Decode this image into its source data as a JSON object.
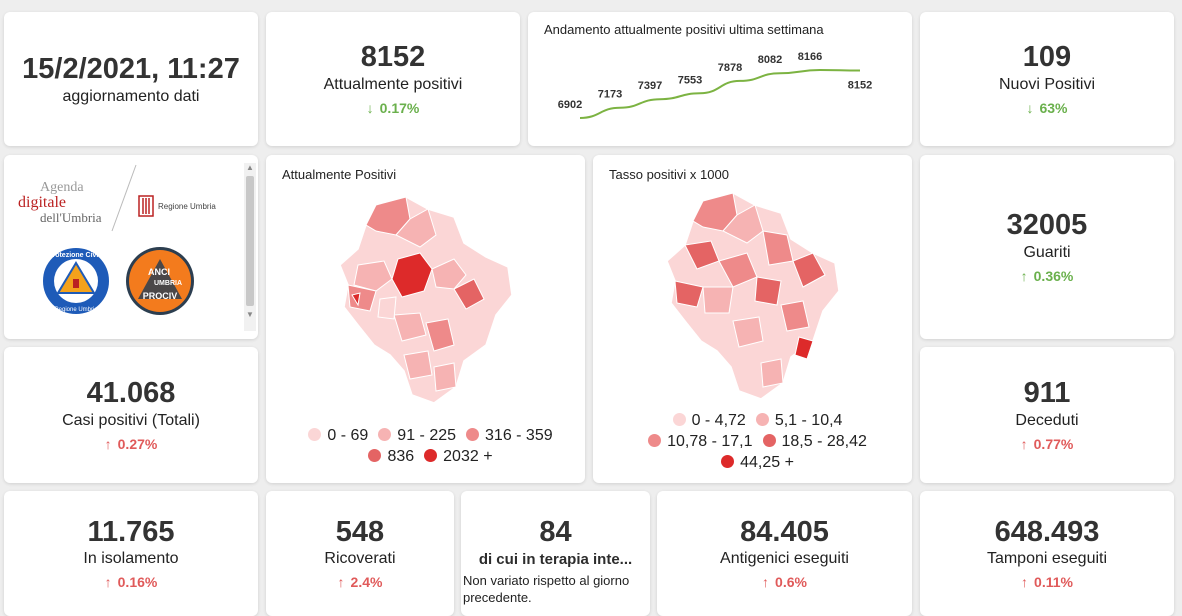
{
  "update": {
    "datetime": "15/2/2021, 11:27",
    "label": "aggiornamento dati"
  },
  "attualmente_positivi": {
    "value": "8152",
    "label": "Attualmente positivi",
    "delta": "0.17%",
    "direction": "down"
  },
  "weekly_chart": {
    "title": "Andamento attualmente positivi ultima settimana",
    "chart_data": {
      "type": "line",
      "title": "Andamento attualmente positivi ultima settimana",
      "values": [
        6902,
        7173,
        7397,
        7553,
        7878,
        8082,
        8166,
        8152
      ],
      "labels": [
        "6902",
        "7173",
        "7397",
        "7553",
        "7878",
        "8082",
        "8166",
        "8152"
      ],
      "color": "#7cb342"
    }
  },
  "nuovi_positivi": {
    "value": "109",
    "label": "Nuovi Positivi",
    "delta": "63%",
    "direction": "down"
  },
  "logos": {
    "agenda_line1": "Agenda",
    "agenda_line2": "digitale",
    "agenda_line3": "dell'Umbria",
    "regione": "Regione Umbria",
    "protezione_top": "Protezione Civile",
    "protezione_bottom": "Regione Umbria",
    "anci_line1": "ANCI",
    "anci_line2": "UMBRIA",
    "anci_line3": "PROCIV"
  },
  "map_positivi": {
    "title": "Attualmente Positivi",
    "legend": [
      {
        "label": "0 - 69",
        "color": "#fbd6d6"
      },
      {
        "label": "91 - 225",
        "color": "#f6b3b3"
      },
      {
        "label": "316 - 359",
        "color": "#ee8a8a"
      },
      {
        "label": "836",
        "color": "#e46464"
      },
      {
        "label": "2032 +",
        "color": "#dd2a2a"
      }
    ]
  },
  "map_tasso": {
    "title": "Tasso positivi x 1000",
    "legend": [
      {
        "label": "0 - 4,72",
        "color": "#fbd6d6"
      },
      {
        "label": "5,1 - 10,4",
        "color": "#f6b3b3"
      },
      {
        "label": "10,78 - 17,1",
        "color": "#ee8a8a"
      },
      {
        "label": "18,5 - 28,42",
        "color": "#e46464"
      },
      {
        "label": "44,25 +",
        "color": "#dd2a2a"
      }
    ]
  },
  "guariti": {
    "value": "32005",
    "label": "Guariti",
    "delta": "0.36%",
    "direction": "up"
  },
  "casi_totali": {
    "value": "41.068",
    "label": "Casi positivi (Totali)",
    "delta": "0.27%",
    "direction": "up"
  },
  "deceduti": {
    "value": "911",
    "label": "Deceduti",
    "delta": "0.77%",
    "direction": "up"
  },
  "isolamento": {
    "value": "11.765",
    "label": "In isolamento",
    "delta": "0.16%",
    "direction": "up"
  },
  "ricoverati": {
    "value": "548",
    "label": "Ricoverati",
    "delta": "2.4%",
    "direction": "up"
  },
  "terapia": {
    "value": "84",
    "label": "di cui in terapia inte...",
    "note": "Non variato rispetto al giorno precedente."
  },
  "antigenici": {
    "value": "84.405",
    "label": "Antigenici eseguiti",
    "delta": "0.6%",
    "direction": "up"
  },
  "tamponi": {
    "value": "648.493",
    "label": "Tamponi eseguiti",
    "delta": "0.11%",
    "direction": "up"
  },
  "colors": {
    "green": "#6ab04c",
    "red": "#e05a5a"
  }
}
